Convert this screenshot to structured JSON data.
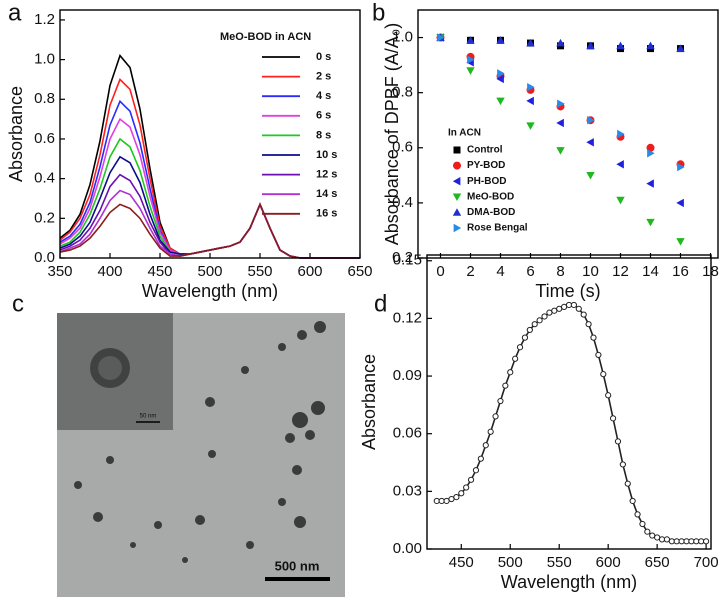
{
  "chart_data": [
    {
      "type": "line",
      "panel_label": "a",
      "xlabel": "Wavelength (nm)",
      "ylabel": "Absorbance",
      "legend_title": "MeO-BOD in ACN",
      "xlim": [
        350,
        650
      ],
      "ylim": [
        0,
        1.25
      ],
      "xticks": [
        350,
        400,
        450,
        500,
        550,
        600,
        650
      ],
      "yticks": [
        {
          "value": 0,
          "label": "0.0"
        },
        0.2,
        0.4,
        0.6,
        0.8,
        {
          "value": 1,
          "label": "1.0"
        },
        1.2
      ],
      "x": [
        350,
        360,
        370,
        380,
        390,
        400,
        410,
        420,
        430,
        440,
        450,
        460,
        470,
        480,
        490,
        500,
        510,
        520,
        530,
        540,
        550,
        560,
        570,
        580,
        590,
        600,
        610,
        620,
        630,
        640,
        650
      ],
      "series": [
        {
          "name": "0 s",
          "color": "#000000",
          "values": [
            0.1,
            0.14,
            0.22,
            0.37,
            0.59,
            0.87,
            1.02,
            0.96,
            0.75,
            0.45,
            0.18,
            0.05,
            0.02,
            0.02,
            0.03,
            0.04,
            0.05,
            0.06,
            0.08,
            0.15,
            0.27,
            0.15,
            0.04,
            0.01,
            0,
            0,
            0,
            0,
            0,
            0,
            0
          ]
        },
        {
          "name": "2 s",
          "color": "#ff2020",
          "values": [
            0.09,
            0.13,
            0.2,
            0.32,
            0.52,
            0.77,
            0.9,
            0.85,
            0.67,
            0.4,
            0.16,
            0.05,
            0.02,
            0.02,
            0.03,
            0.04,
            0.05,
            0.06,
            0.08,
            0.15,
            0.27,
            0.15,
            0.04,
            0.01,
            0,
            0,
            0,
            0,
            0,
            0,
            0
          ]
        },
        {
          "name": "4 s",
          "color": "#2a2aff",
          "values": [
            0.08,
            0.11,
            0.17,
            0.28,
            0.46,
            0.67,
            0.79,
            0.74,
            0.58,
            0.35,
            0.14,
            0.04,
            0.02,
            0.02,
            0.03,
            0.04,
            0.05,
            0.06,
            0.08,
            0.15,
            0.27,
            0.15,
            0.04,
            0.01,
            0,
            0,
            0,
            0,
            0,
            0,
            0
          ]
        },
        {
          "name": "6 s",
          "color": "#e040e0",
          "values": [
            0.07,
            0.1,
            0.15,
            0.25,
            0.41,
            0.6,
            0.7,
            0.66,
            0.52,
            0.31,
            0.13,
            0.04,
            0.02,
            0.02,
            0.03,
            0.04,
            0.05,
            0.06,
            0.08,
            0.15,
            0.27,
            0.15,
            0.04,
            0.01,
            0,
            0,
            0,
            0,
            0,
            0,
            0
          ]
        },
        {
          "name": "8 s",
          "color": "#1ec81e",
          "values": [
            0.06,
            0.08,
            0.13,
            0.22,
            0.35,
            0.51,
            0.6,
            0.56,
            0.44,
            0.26,
            0.11,
            0.03,
            0.02,
            0.02,
            0.03,
            0.04,
            0.05,
            0.06,
            0.08,
            0.15,
            0.27,
            0.15,
            0.04,
            0.01,
            0,
            0,
            0,
            0,
            0,
            0,
            0
          ]
        },
        {
          "name": "10 s",
          "color": "#0c0c8a",
          "values": [
            0.05,
            0.07,
            0.11,
            0.18,
            0.3,
            0.43,
            0.51,
            0.48,
            0.38,
            0.22,
            0.09,
            0.03,
            0.02,
            0.02,
            0.03,
            0.04,
            0.05,
            0.06,
            0.08,
            0.15,
            0.27,
            0.15,
            0.04,
            0.01,
            0,
            0,
            0,
            0,
            0,
            0,
            0
          ]
        },
        {
          "name": "12 s",
          "color": "#6a0fb0",
          "values": [
            0.04,
            0.06,
            0.09,
            0.15,
            0.24,
            0.36,
            0.42,
            0.39,
            0.31,
            0.18,
            0.08,
            0.02,
            0.01,
            0.02,
            0.03,
            0.04,
            0.05,
            0.06,
            0.08,
            0.15,
            0.27,
            0.15,
            0.04,
            0.01,
            0,
            0,
            0,
            0,
            0,
            0,
            0
          ]
        },
        {
          "name": "14 s",
          "color": "#b030d0",
          "values": [
            0.03,
            0.05,
            0.07,
            0.12,
            0.2,
            0.29,
            0.34,
            0.32,
            0.25,
            0.15,
            0.06,
            0.02,
            0.01,
            0.02,
            0.03,
            0.04,
            0.05,
            0.06,
            0.08,
            0.15,
            0.27,
            0.15,
            0.04,
            0.01,
            0,
            0,
            0,
            0,
            0,
            0,
            0
          ]
        },
        {
          "name": "16 s",
          "color": "#8a1c1c",
          "values": [
            0.03,
            0.04,
            0.06,
            0.1,
            0.16,
            0.23,
            0.27,
            0.25,
            0.2,
            0.12,
            0.05,
            0.01,
            0.01,
            0.02,
            0.03,
            0.04,
            0.05,
            0.06,
            0.08,
            0.15,
            0.27,
            0.15,
            0.04,
            0.01,
            0,
            0,
            0,
            0,
            0,
            0,
            0
          ]
        }
      ]
    },
    {
      "type": "scatter",
      "panel_label": "b",
      "xlabel": "Time (s)",
      "ylabel": "Absorbance of DPBF (A/A₀)",
      "legend_title": "In ACN",
      "xlim": [
        -1.5,
        18.5
      ],
      "ylim": [
        0.2,
        1.1
      ],
      "xticks": [
        0,
        2,
        4,
        6,
        8,
        10,
        12,
        14,
        16,
        18
      ],
      "yticks": [
        0.2,
        0.4,
        0.6,
        0.8,
        {
          "value": 1,
          "label": "1.0"
        }
      ],
      "x": [
        0,
        2,
        4,
        6,
        8,
        10,
        12,
        14,
        16
      ],
      "series": [
        {
          "name": "Control",
          "color": "#000000",
          "marker": "square",
          "values": [
            1.0,
            0.99,
            0.99,
            0.98,
            0.97,
            0.97,
            0.96,
            0.96,
            0.96
          ]
        },
        {
          "name": "PY-BOD",
          "color": "#ee1c1c",
          "marker": "circle",
          "values": [
            1.0,
            0.93,
            0.86,
            0.81,
            0.75,
            0.7,
            0.64,
            0.6,
            0.54
          ]
        },
        {
          "name": "PH-BOD",
          "color": "#2020e0",
          "marker": "triangle-left",
          "values": [
            1.0,
            0.91,
            0.85,
            0.77,
            0.69,
            0.62,
            0.54,
            0.47,
            0.4
          ]
        },
        {
          "name": "MeO-BOD",
          "color": "#1fb81f",
          "marker": "triangle-down",
          "values": [
            1.0,
            0.88,
            0.77,
            0.68,
            0.59,
            0.5,
            0.41,
            0.33,
            0.26
          ]
        },
        {
          "name": "DMA-BOD",
          "color": "#2030d0",
          "marker": "triangle-up",
          "values": [
            1.0,
            0.99,
            0.99,
            0.98,
            0.98,
            0.97,
            0.97,
            0.97,
            0.96
          ]
        },
        {
          "name": "Rose Bengal",
          "color": "#2a8ae8",
          "marker": "triangle-right",
          "values": [
            1.0,
            0.92,
            0.87,
            0.82,
            0.76,
            0.7,
            0.65,
            0.58,
            0.53
          ]
        }
      ]
    },
    {
      "type": "line",
      "panel_label": "d",
      "xlabel": "Wavelength (nm)",
      "ylabel": "Absorbance",
      "xlim": [
        415,
        705
      ],
      "ylim": [
        0,
        0.153
      ],
      "xticks": [
        450,
        500,
        550,
        600,
        650,
        700
      ],
      "yticks": [
        {
          "value": 0,
          "label": "0.00"
        },
        {
          "value": 0.03,
          "label": "0.03"
        },
        {
          "value": 0.06,
          "label": "0.06"
        },
        {
          "value": 0.09,
          "label": "0.09"
        },
        {
          "value": 0.12,
          "label": "0.12"
        },
        {
          "value": 0.15,
          "label": "0.15"
        }
      ],
      "x": [
        425,
        430,
        435,
        440,
        445,
        450,
        455,
        460,
        465,
        470,
        475,
        480,
        485,
        490,
        495,
        500,
        505,
        510,
        515,
        520,
        525,
        530,
        535,
        540,
        545,
        550,
        555,
        560,
        565,
        570,
        575,
        580,
        585,
        590,
        595,
        600,
        605,
        610,
        615,
        620,
        625,
        630,
        635,
        640,
        645,
        650,
        655,
        660,
        665,
        670,
        675,
        680,
        685,
        690,
        695,
        700
      ],
      "series": [
        {
          "color": "#222222",
          "marker": "circle-open",
          "values": [
            0.025,
            0.025,
            0.025,
            0.026,
            0.027,
            0.029,
            0.032,
            0.036,
            0.041,
            0.047,
            0.054,
            0.061,
            0.069,
            0.077,
            0.085,
            0.092,
            0.099,
            0.105,
            0.11,
            0.114,
            0.117,
            0.119,
            0.121,
            0.123,
            0.124,
            0.125,
            0.126,
            0.127,
            0.127,
            0.125,
            0.122,
            0.117,
            0.11,
            0.101,
            0.091,
            0.08,
            0.068,
            0.056,
            0.044,
            0.034,
            0.025,
            0.018,
            0.013,
            0.009,
            0.007,
            0.006,
            0.005,
            0.005,
            0.004,
            0.004,
            0.004,
            0.004,
            0.004,
            0.004,
            0.004,
            0.004
          ]
        }
      ]
    }
  ],
  "image_panel": {
    "panel_label": "c",
    "scale_bar": "500 nm",
    "inset_scale_bar": "50 nm"
  }
}
